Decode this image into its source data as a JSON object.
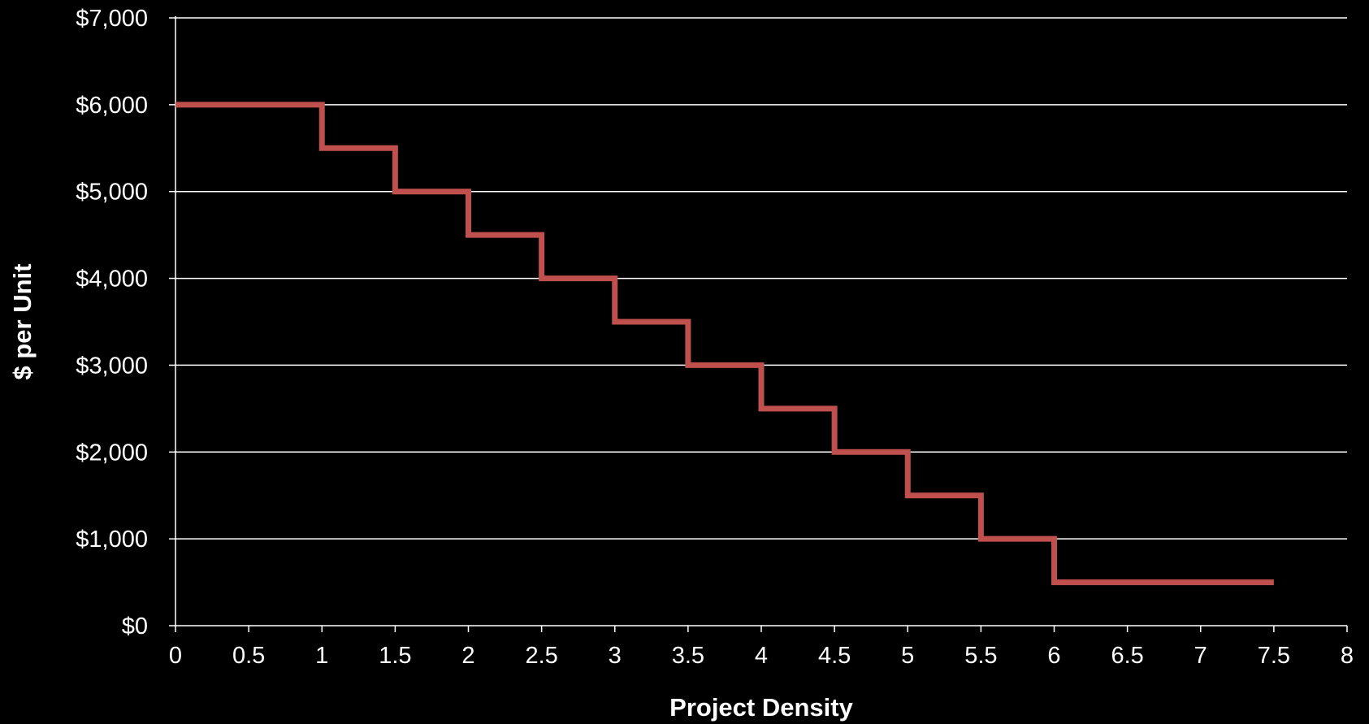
{
  "chart_data": {
    "type": "line",
    "step": "post",
    "title": "",
    "xlabel": "Project Density",
    "ylabel": "$ per Unit",
    "xlim": [
      0,
      8
    ],
    "ylim": [
      0,
      7000
    ],
    "x_ticks": [
      0,
      0.5,
      1,
      1.5,
      2,
      2.5,
      3,
      3.5,
      4,
      4.5,
      5,
      5.5,
      6,
      6.5,
      7,
      7.5,
      8
    ],
    "x_tick_labels": [
      "0",
      "0.5",
      "1",
      "1.5",
      "2",
      "2.5",
      "3",
      "3.5",
      "4",
      "4.5",
      "5",
      "5.5",
      "6",
      "6.5",
      "7",
      "7.5",
      "8"
    ],
    "y_ticks": [
      0,
      1000,
      2000,
      3000,
      4000,
      5000,
      6000,
      7000
    ],
    "y_tick_labels": [
      "$0",
      "$1,000",
      "$2,000",
      "$3,000",
      "$4,000",
      "$5,000",
      "$6,000",
      "$7,000"
    ],
    "grid": "horizontal",
    "legend": "none",
    "colors": {
      "background": "#000000",
      "series": "#c0504d",
      "text": "#ffffff",
      "grid": "#ffffff"
    },
    "series": [
      {
        "x": [
          0,
          0.5,
          1,
          1.5,
          2,
          2.5,
          3,
          3.5,
          4,
          4.5,
          5,
          5.5,
          6,
          6.5,
          7,
          7.5
        ],
        "values": [
          6000,
          6000,
          5500,
          5000,
          4500,
          4000,
          3500,
          3000,
          2500,
          2000,
          1500,
          1000,
          500,
          500,
          500,
          500
        ]
      }
    ]
  }
}
